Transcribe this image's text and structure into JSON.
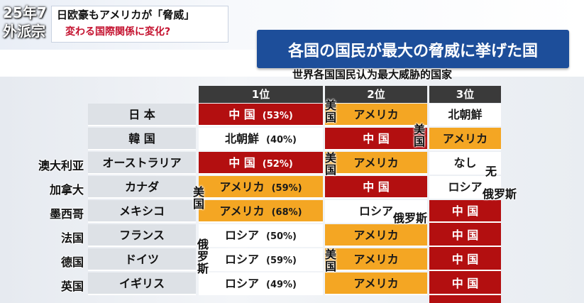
{
  "corner": {
    "line1": "25年7",
    "line2": "外派宗"
  },
  "headline": {
    "line1": "日欧豪もアメリカが「脅威」",
    "line2": "変わる国際関係に変化?"
  },
  "title": {
    "ja": "各国の国民が最大の脅威に挙げた国",
    "zh": "世界各国国民认为最大威胁的国家"
  },
  "table": {
    "headers": [
      "1位",
      "2位",
      "3位"
    ],
    "rows": [
      {
        "label": "日 本",
        "zh": "",
        "cells": [
          {
            "text": "中 国",
            "pct": "(53%)",
            "color": "red"
          },
          {
            "text": "アメリカ",
            "pct": "",
            "color": "orange"
          },
          {
            "text": "北朝鮮",
            "pct": "",
            "color": "white"
          }
        ]
      },
      {
        "label": "韓 国",
        "zh": "",
        "cells": [
          {
            "text": "北朝鮮",
            "pct": "(40%)",
            "color": "white"
          },
          {
            "text": "中 国",
            "pct": "",
            "color": "red"
          },
          {
            "text": "アメリカ",
            "pct": "",
            "color": "orange"
          }
        ]
      },
      {
        "label": "オーストラリア",
        "zh": "澳大利亚",
        "cells": [
          {
            "text": "中 国",
            "pct": "(52%)",
            "color": "red"
          },
          {
            "text": "アメリカ",
            "pct": "",
            "color": "orange"
          },
          {
            "text": "なし",
            "pct": "",
            "color": "white"
          }
        ]
      },
      {
        "label": "カナダ",
        "zh": "加拿大",
        "cells": [
          {
            "text": "アメリカ",
            "pct": "(59%)",
            "color": "orange"
          },
          {
            "text": "中 国",
            "pct": "",
            "color": "red"
          },
          {
            "text": "ロシア",
            "pct": "",
            "color": "white"
          }
        ]
      },
      {
        "label": "メキシコ",
        "zh": "墨西哥",
        "cells": [
          {
            "text": "アメリカ",
            "pct": "(68%)",
            "color": "orange"
          },
          {
            "text": "ロシア",
            "pct": "",
            "color": "white"
          },
          {
            "text": "中 国",
            "pct": "",
            "color": "red"
          }
        ]
      },
      {
        "label": "フランス",
        "zh": "法国",
        "cells": [
          {
            "text": "ロシア",
            "pct": "(50%)",
            "color": "white"
          },
          {
            "text": "アメリカ",
            "pct": "",
            "color": "orange"
          },
          {
            "text": "中 国",
            "pct": "",
            "color": "red"
          }
        ]
      },
      {
        "label": "ドイツ",
        "zh": "德国",
        "cells": [
          {
            "text": "ロシア",
            "pct": "(59%)",
            "color": "white"
          },
          {
            "text": "アメリカ",
            "pct": "",
            "color": "orange"
          },
          {
            "text": "中 国",
            "pct": "",
            "color": "red"
          }
        ]
      },
      {
        "label": "イギリス",
        "zh": "英国",
        "cells": [
          {
            "text": "ロシア",
            "pct": "(49%)",
            "color": "white"
          },
          {
            "text": "アメリカ",
            "pct": "",
            "color": "orange"
          },
          {
            "text": "中 国",
            "pct": "",
            "color": "red"
          }
        ]
      }
    ]
  },
  "annotations": {
    "us": "美国",
    "russia_v": "俄罗斯",
    "russia": "俄罗斯",
    "none": "无"
  },
  "colors": {
    "red": "#b30f10",
    "orange": "#f4a623",
    "header": "#3a3a3a",
    "title_bg": "#1d4e9a"
  }
}
